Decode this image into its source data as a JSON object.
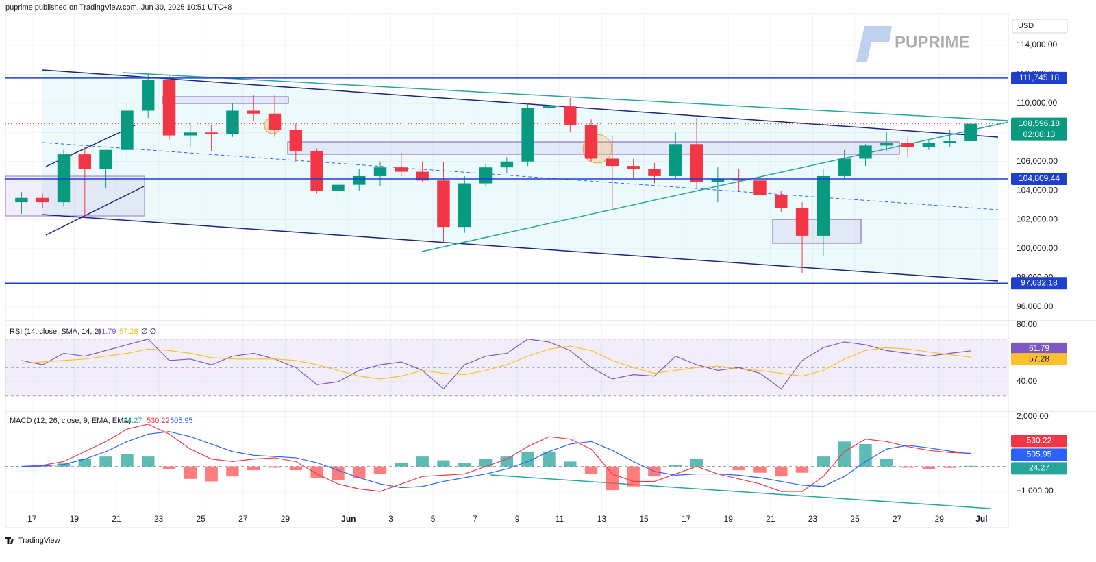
{
  "header": "puprime published on TradingView.com, Jun 30, 2025 10:51 UTC+8",
  "watermark": "PUPRIME",
  "footer": "TradingView",
  "chart_data": [
    {
      "type": "candlestick",
      "currency": "USD",
      "open": [
        103200,
        103500,
        103200,
        106500,
        105500,
        106800,
        109500,
        111600,
        107800,
        108000,
        107900,
        109500,
        109300,
        108200,
        106700,
        104000,
        104400,
        105000,
        105600,
        105300,
        104700,
        101500,
        104500,
        105600,
        106000,
        109700,
        109800,
        108500,
        106200,
        105700,
        105500,
        105000,
        107200,
        104600,
        104800,
        104700,
        103700,
        102800,
        100900,
        105000,
        106200,
        107100,
        107300,
        107000,
        107300,
        107400
      ],
      "high": [
        103900,
        103800,
        106800,
        107000,
        106800,
        110000,
        112000,
        111900,
        108700,
        108500,
        110000,
        110600,
        110600,
        108600,
        106900,
        104600,
        105500,
        106000,
        106600,
        106000,
        106000,
        105000,
        105800,
        106300,
        110000,
        110500,
        110400,
        108900,
        107800,
        106200,
        105900,
        108000,
        109000,
        105600,
        105500,
        106600,
        104000,
        103200,
        105500,
        106800,
        107200,
        108000,
        107700,
        107500,
        108200,
        108900
      ],
      "low": [
        102400,
        102800,
        102900,
        102200,
        104200,
        106000,
        109000,
        107500,
        107000,
        106700,
        107700,
        108800,
        107700,
        106000,
        103800,
        103300,
        104000,
        104300,
        105000,
        104600,
        100400,
        101100,
        104300,
        105200,
        105700,
        108600,
        108000,
        106000,
        102800,
        104900,
        104500,
        104800,
        104200,
        103200,
        104000,
        103500,
        102500,
        98300,
        99500,
        104800,
        105700,
        106700,
        106300,
        106800,
        107000,
        107200
      ],
      "close": [
        103500,
        103200,
        106500,
        105500,
        106800,
        109500,
        111600,
        107800,
        108000,
        107900,
        109500,
        109300,
        108200,
        106700,
        104000,
        104400,
        105000,
        105600,
        105300,
        104700,
        101500,
        104500,
        105600,
        106000,
        109700,
        109800,
        108500,
        106200,
        105700,
        105500,
        105000,
        107200,
        104600,
        104800,
        104700,
        103700,
        102800,
        100900,
        105000,
        106200,
        107100,
        107300,
        107000,
        107300,
        107400,
        108596.18
      ],
      "up_color": "#089981",
      "down_color": "#f23645",
      "xlim": [
        -0.26,
        47.27
      ],
      "xticks": [
        {
          "value": 1,
          "label": "17"
        },
        {
          "value": 3,
          "label": "19"
        },
        {
          "value": 5,
          "label": "21"
        },
        {
          "value": 7,
          "label": "23"
        },
        {
          "value": 9,
          "label": "25"
        },
        {
          "value": 11,
          "label": "27"
        },
        {
          "value": 13,
          "label": "29"
        },
        {
          "value": 16,
          "label": "Jun"
        },
        {
          "value": 18,
          "label": "3"
        },
        {
          "value": 20,
          "label": "5"
        },
        {
          "value": 22,
          "label": "7"
        },
        {
          "value": 24,
          "label": "9"
        },
        {
          "value": 26,
          "label": "11"
        },
        {
          "value": 28,
          "label": "13"
        },
        {
          "value": 30,
          "label": "15"
        },
        {
          "value": 32,
          "label": "17"
        },
        {
          "value": 34,
          "label": "19"
        },
        {
          "value": 36,
          "label": "21"
        },
        {
          "value": 38,
          "label": "23"
        },
        {
          "value": 40,
          "label": "25"
        },
        {
          "value": 42,
          "label": "27"
        },
        {
          "value": 44,
          "label": "29"
        },
        {
          "value": 46,
          "label": "Jul"
        }
      ],
      "ylim": [
        95050,
        116170
      ],
      "yticks": [
        {
          "value": 96000,
          "label": "96,000.00"
        },
        {
          "value": 98000,
          "label": "98,000.00"
        },
        {
          "value": 100000,
          "label": "100,000.00"
        },
        {
          "value": 102000,
          "label": "102,000.00"
        },
        {
          "value": 104000,
          "label": "104,000.00"
        },
        {
          "value": 106000,
          "label": "106,000.00"
        },
        {
          "value": 108000,
          "label": "108,000.00"
        },
        {
          "value": 110000,
          "label": "110,000.00"
        },
        {
          "value": 112000,
          "label": "112,000.00"
        },
        {
          "value": 114000,
          "label": "114,000.00"
        }
      ],
      "price_lines": [
        {
          "value": 111745.18,
          "label": "111,745.18",
          "color": "#1e3fcc"
        },
        {
          "value": 104809.44,
          "label": "104,809.44",
          "color": "#1e3fcc"
        },
        {
          "value": 97632.18,
          "label": "97,632.18",
          "color": "#1e3fcc"
        }
      ],
      "last_label": "108,596.18",
      "countdown": "02:08:13",
      "last_color": "#089981"
    },
    {
      "type": "rsi",
      "title": "RSI (14, close, SMA, 14, 2)",
      "header_tail": "∅ ∅",
      "series": [
        {
          "color": "#7e57c2",
          "values": [
            55,
            52,
            60,
            58,
            62,
            66,
            70,
            55,
            56,
            52,
            58,
            60,
            56,
            50,
            38,
            40,
            48,
            52,
            54,
            48,
            35,
            52,
            58,
            60,
            70,
            68,
            62,
            50,
            42,
            45,
            44,
            58,
            52,
            48,
            50,
            46,
            35,
            55,
            64,
            68,
            66,
            62,
            60,
            58,
            60,
            61.79
          ]
        },
        {
          "color": "#fbc02d",
          "values": [
            53,
            54,
            55,
            56,
            58,
            60,
            63,
            62,
            60,
            57,
            56,
            56,
            56,
            55,
            52,
            48,
            44,
            42,
            44,
            48,
            46,
            45,
            48,
            52,
            58,
            63,
            65,
            62,
            55,
            50,
            46,
            48,
            50,
            51,
            49,
            48,
            46,
            44,
            48,
            56,
            62,
            64,
            63,
            61,
            59,
            57.28
          ]
        }
      ],
      "bands": [
        70,
        50,
        30
      ],
      "ylim": [
        19.3,
        82.9
      ],
      "yticks": [
        {
          "value": 80,
          "label": "80.00"
        },
        {
          "value": 40,
          "label": "40.00"
        }
      ]
    },
    {
      "type": "macd",
      "title": "MACD (12, 26, close, 9, EMA, EMA)",
      "histogram": {
        "up_color": "#26a69a",
        "down_color": "#ff5252",
        "values": [
          0,
          30,
          120,
          300,
          400,
          500,
          400,
          -100,
          -500,
          -600,
          -400,
          -150,
          -50,
          -150,
          -450,
          -550,
          -450,
          -300,
          150,
          400,
          250,
          150,
          300,
          400,
          600,
          600,
          200,
          -300,
          -950,
          -800,
          -400,
          50,
          300,
          0,
          -150,
          -250,
          -400,
          -250,
          400,
          1000,
          900,
          300,
          -50,
          -100,
          -60,
          24.27
        ]
      },
      "series": [
        {
          "color": "#f23645",
          "values": [
            0,
            50,
            200,
            600,
            1000,
            1500,
            1700,
            1300,
            700,
            300,
            200,
            300,
            350,
            200,
            -300,
            -700,
            -900,
            -1000,
            -700,
            -400,
            -350,
            -300,
            0,
            300,
            800,
            1200,
            1100,
            700,
            -300,
            -600,
            -600,
            -300,
            0,
            -300,
            -500,
            -700,
            -1000,
            -1000,
            -400,
            600,
            1100,
            1000,
            800,
            650,
            560,
            530.22
          ]
        },
        {
          "color": "#2962ff",
          "values": [
            0,
            20,
            80,
            300,
            600,
            1000,
            1300,
            1400,
            1200,
            900,
            600,
            450,
            400,
            350,
            150,
            -150,
            -450,
            -700,
            -850,
            -800,
            -600,
            -450,
            -300,
            -100,
            200,
            600,
            900,
            1000,
            650,
            200,
            -200,
            -350,
            -300,
            -300,
            -350,
            -450,
            -600,
            -750,
            -800,
            -400,
            200,
            700,
            850,
            750,
            620,
            505.95
          ]
        }
      ],
      "ylim": [
        -2459,
        2220
      ],
      "yticks": [
        {
          "value": 2000,
          "label": "2,000.00"
        },
        {
          "value": -1000,
          "label": "−1,000.00"
        }
      ]
    }
  ]
}
